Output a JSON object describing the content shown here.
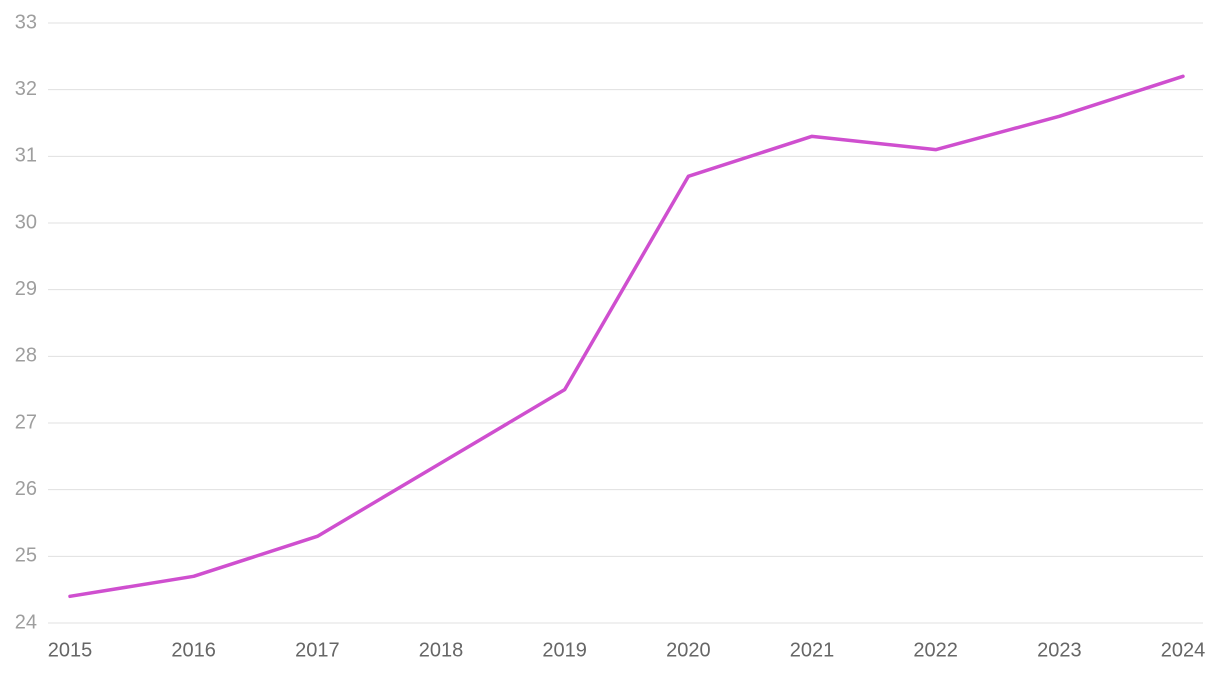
{
  "chart_data": {
    "type": "line",
    "x": [
      2015,
      2016,
      2017,
      2018,
      2019,
      2020,
      2021,
      2022,
      2023,
      2024
    ],
    "values": [
      24.4,
      24.7,
      25.3,
      26.4,
      27.5,
      30.7,
      31.3,
      31.1,
      31.6,
      32.2
    ],
    "color": "#cf4fcf",
    "xlim": [
      2015,
      2024
    ],
    "xticks": [
      2015,
      2016,
      2017,
      2018,
      2019,
      2020,
      2021,
      2022,
      2023,
      2024
    ],
    "ylim": [
      24,
      33
    ],
    "yticks": [
      24,
      25,
      26,
      27,
      28,
      29,
      30,
      31,
      32,
      33
    ],
    "grid": true
  }
}
